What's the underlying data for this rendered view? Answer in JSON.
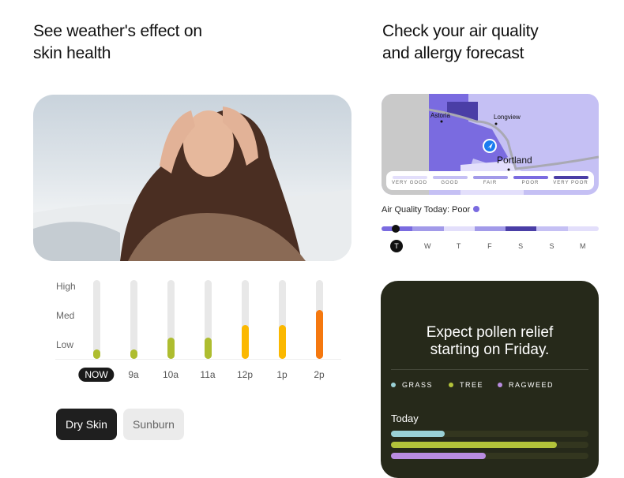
{
  "skin": {
    "heading": "See weather's effect on\nskin health",
    "y_labels": [
      "High",
      "Med",
      "Low"
    ],
    "hours": [
      {
        "label": "NOW",
        "level": 0.12,
        "color": "#aebd2f"
      },
      {
        "label": "9a",
        "level": 0.12,
        "color": "#aebd2f"
      },
      {
        "label": "10a",
        "level": 0.27,
        "color": "#aebd2f"
      },
      {
        "label": "11a",
        "level": 0.27,
        "color": "#aebd2f"
      },
      {
        "label": "12p",
        "level": 0.43,
        "color": "#fbb800"
      },
      {
        "label": "1p",
        "level": 0.43,
        "color": "#fbb800"
      },
      {
        "label": "2p",
        "level": 0.62,
        "color": "#f5780f"
      }
    ],
    "buttons": {
      "dry": "Dry Skin",
      "sunburn": "Sunburn"
    },
    "selected": "Dry Skin"
  },
  "air": {
    "heading": "Check your air quality\nand allergy forecast",
    "map": {
      "cities": [
        "Astoria",
        "Longview",
        "Portland"
      ]
    },
    "legend": [
      {
        "label": "VERY GOOD",
        "color": "#e3dffb"
      },
      {
        "label": "GOOD",
        "color": "#c5c0f4"
      },
      {
        "label": "FAIR",
        "color": "#a29ae9"
      },
      {
        "label": "POOR",
        "color": "#7a6be0"
      },
      {
        "label": "VERY POOR",
        "color": "#4a3ea6"
      }
    ],
    "today_label": "Air Quality Today: Poor",
    "days": [
      {
        "label": "T",
        "color": "#7a6be0"
      },
      {
        "label": "W",
        "color": "#a29ae9"
      },
      {
        "label": "T",
        "color": "#e3dffb"
      },
      {
        "label": "F",
        "color": "#a29ae9"
      },
      {
        "label": "S",
        "color": "#4a3ea6"
      },
      {
        "label": "S",
        "color": "#c5c0f4"
      },
      {
        "label": "M",
        "color": "#e3dffb"
      }
    ]
  },
  "pollen": {
    "title": "Expect pollen relief\nstarting on Friday.",
    "legend": [
      {
        "label": "GRASS",
        "color": "#9ad0d6"
      },
      {
        "label": "TREE",
        "color": "#b3c33a"
      },
      {
        "label": "RAGWEED",
        "color": "#b98ce0"
      }
    ],
    "today_label": "Today",
    "today_levels": [
      0.27,
      0.84,
      0.48
    ]
  }
}
